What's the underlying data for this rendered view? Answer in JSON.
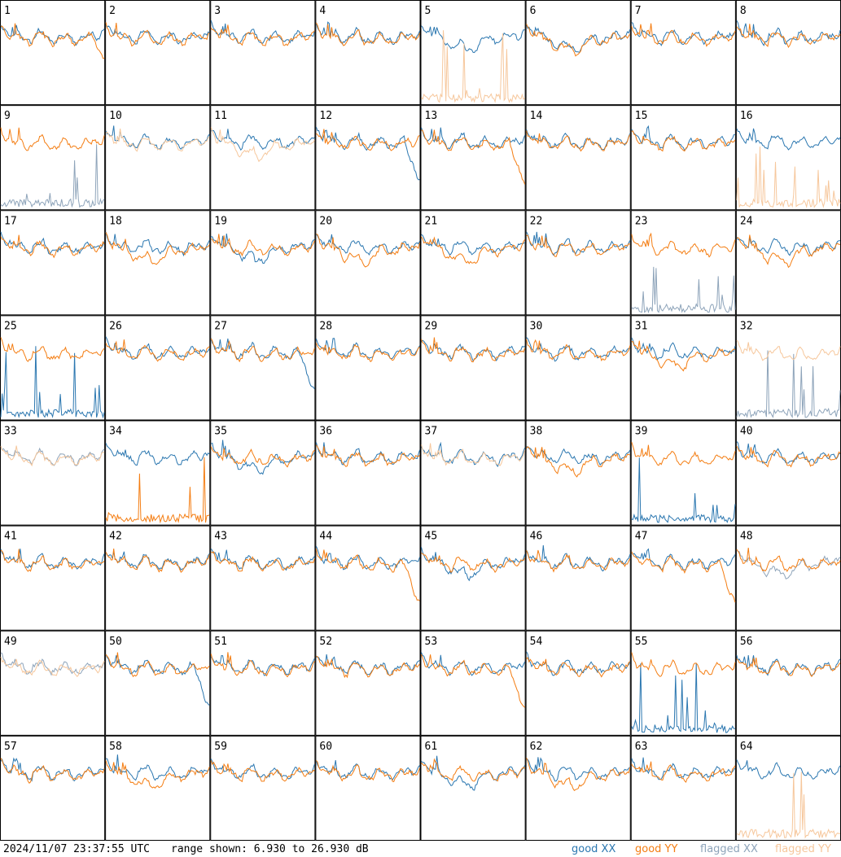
{
  "footer": {
    "timestamp": "2024/11/07 23:37:55 UTC",
    "range_text": "range shown: 6.930 to 26.930 dB"
  },
  "legend": [
    {
      "label": "good XX",
      "color": "#2b77b0"
    },
    {
      "label": "good YY",
      "color": "#f47d12"
    },
    {
      "label": "flagged XX",
      "color": "#8ea4ba"
    },
    {
      "label": "flagged YY",
      "color": "#f6c79c"
    }
  ],
  "chart_data": {
    "type": "line",
    "grid": "8x8 small multiples",
    "range_db": [
      6.93,
      26.93
    ],
    "ylim": [
      6.93,
      26.93
    ],
    "series_legend": [
      "good XX",
      "good YY",
      "flagged XX",
      "flagged YY"
    ],
    "panels": [
      {
        "id": "1",
        "xx_flag": false,
        "yy_flag": false,
        "xx_pattern": "normal",
        "yy_pattern": "droop"
      },
      {
        "id": "2",
        "xx_flag": false,
        "yy_flag": false,
        "xx_pattern": "normal",
        "yy_pattern": "normal"
      },
      {
        "id": "3",
        "xx_flag": false,
        "yy_flag": false,
        "xx_pattern": "normal",
        "yy_pattern": "normal"
      },
      {
        "id": "4",
        "xx_flag": false,
        "yy_flag": false,
        "xx_pattern": "normal",
        "yy_pattern": "normal"
      },
      {
        "id": "5",
        "xx_flag": false,
        "yy_flag": true,
        "xx_pattern": "dip",
        "yy_pattern": "spikes"
      },
      {
        "id": "6",
        "xx_flag": false,
        "yy_flag": false,
        "xx_pattern": "dip",
        "yy_pattern": "dip"
      },
      {
        "id": "7",
        "xx_flag": false,
        "yy_flag": false,
        "xx_pattern": "normal",
        "yy_pattern": "normal"
      },
      {
        "id": "8",
        "xx_flag": false,
        "yy_flag": false,
        "xx_pattern": "normal",
        "yy_pattern": "normal"
      },
      {
        "id": "9",
        "xx_flag": true,
        "yy_flag": false,
        "xx_pattern": "spikes",
        "yy_pattern": "normal"
      },
      {
        "id": "10",
        "xx_flag": false,
        "yy_flag": true,
        "xx_pattern": "normal",
        "yy_pattern": "normal"
      },
      {
        "id": "11",
        "xx_flag": false,
        "yy_flag": true,
        "xx_pattern": "normal",
        "yy_pattern": "dip"
      },
      {
        "id": "12",
        "xx_flag": false,
        "yy_flag": false,
        "xx_pattern": "drop",
        "yy_pattern": "normal"
      },
      {
        "id": "13",
        "xx_flag": false,
        "yy_flag": false,
        "xx_pattern": "normal",
        "yy_pattern": "drop"
      },
      {
        "id": "14",
        "xx_flag": false,
        "yy_flag": false,
        "xx_pattern": "normal",
        "yy_pattern": "normal"
      },
      {
        "id": "15",
        "xx_flag": false,
        "yy_flag": false,
        "xx_pattern": "normal",
        "yy_pattern": "normal"
      },
      {
        "id": "16",
        "xx_flag": false,
        "yy_flag": true,
        "xx_pattern": "normal",
        "yy_pattern": "spikes"
      },
      {
        "id": "17",
        "xx_flag": false,
        "yy_flag": false,
        "xx_pattern": "normal",
        "yy_pattern": "normal"
      },
      {
        "id": "18",
        "xx_flag": false,
        "yy_flag": false,
        "xx_pattern": "normal",
        "yy_pattern": "dip"
      },
      {
        "id": "19",
        "xx_flag": false,
        "yy_flag": false,
        "xx_pattern": "dip",
        "yy_pattern": "normal"
      },
      {
        "id": "20",
        "xx_flag": false,
        "yy_flag": false,
        "xx_pattern": "normal",
        "yy_pattern": "dip"
      },
      {
        "id": "21",
        "xx_flag": false,
        "yy_flag": false,
        "xx_pattern": "normal",
        "yy_pattern": "dip"
      },
      {
        "id": "22",
        "xx_flag": false,
        "yy_flag": false,
        "xx_pattern": "normal",
        "yy_pattern": "normal"
      },
      {
        "id": "23",
        "xx_flag": true,
        "yy_flag": false,
        "xx_pattern": "spikes",
        "yy_pattern": "normal"
      },
      {
        "id": "24",
        "xx_flag": false,
        "yy_flag": false,
        "xx_pattern": "normal",
        "yy_pattern": "dip"
      },
      {
        "id": "25",
        "xx_flag": false,
        "yy_flag": false,
        "xx_pattern": "spikes",
        "yy_pattern": "normal"
      },
      {
        "id": "26",
        "xx_flag": false,
        "yy_flag": false,
        "xx_pattern": "normal",
        "yy_pattern": "normal"
      },
      {
        "id": "27",
        "xx_flag": false,
        "yy_flag": false,
        "xx_pattern": "drop",
        "yy_pattern": "normal"
      },
      {
        "id": "28",
        "xx_flag": false,
        "yy_flag": false,
        "xx_pattern": "normal",
        "yy_pattern": "normal"
      },
      {
        "id": "29",
        "xx_flag": false,
        "yy_flag": false,
        "xx_pattern": "normal",
        "yy_pattern": "normal"
      },
      {
        "id": "30",
        "xx_flag": false,
        "yy_flag": false,
        "xx_pattern": "normal",
        "yy_pattern": "normal"
      },
      {
        "id": "31",
        "xx_flag": false,
        "yy_flag": false,
        "xx_pattern": "normal",
        "yy_pattern": "dip"
      },
      {
        "id": "32",
        "xx_flag": true,
        "yy_flag": true,
        "xx_pattern": "spikes",
        "yy_pattern": "normal"
      },
      {
        "id": "33",
        "xx_flag": true,
        "yy_flag": true,
        "xx_pattern": "normal",
        "yy_pattern": "normal"
      },
      {
        "id": "34",
        "xx_flag": false,
        "yy_flag": false,
        "xx_pattern": "normal",
        "yy_pattern": "spikes"
      },
      {
        "id": "35",
        "xx_flag": false,
        "yy_flag": false,
        "xx_pattern": "dip",
        "yy_pattern": "normal"
      },
      {
        "id": "36",
        "xx_flag": false,
        "yy_flag": false,
        "xx_pattern": "normal",
        "yy_pattern": "normal"
      },
      {
        "id": "37",
        "xx_flag": false,
        "yy_flag": true,
        "xx_pattern": "normal",
        "yy_pattern": "normal"
      },
      {
        "id": "38",
        "xx_flag": false,
        "yy_flag": false,
        "xx_pattern": "normal",
        "yy_pattern": "dip"
      },
      {
        "id": "39",
        "xx_flag": false,
        "yy_flag": false,
        "xx_pattern": "spikes",
        "yy_pattern": "normal"
      },
      {
        "id": "40",
        "xx_flag": false,
        "yy_flag": false,
        "xx_pattern": "normal",
        "yy_pattern": "normal"
      },
      {
        "id": "41",
        "xx_flag": false,
        "yy_flag": false,
        "xx_pattern": "normal",
        "yy_pattern": "normal"
      },
      {
        "id": "42",
        "xx_flag": false,
        "yy_flag": false,
        "xx_pattern": "normal",
        "yy_pattern": "normal"
      },
      {
        "id": "43",
        "xx_flag": false,
        "yy_flag": false,
        "xx_pattern": "normal",
        "yy_pattern": "normal"
      },
      {
        "id": "44",
        "xx_flag": false,
        "yy_flag": false,
        "xx_pattern": "normal",
        "yy_pattern": "drop"
      },
      {
        "id": "45",
        "xx_flag": false,
        "yy_flag": false,
        "xx_pattern": "dip",
        "yy_pattern": "normal"
      },
      {
        "id": "46",
        "xx_flag": false,
        "yy_flag": false,
        "xx_pattern": "normal",
        "yy_pattern": "normal"
      },
      {
        "id": "47",
        "xx_flag": false,
        "yy_flag": false,
        "xx_pattern": "normal",
        "yy_pattern": "drop"
      },
      {
        "id": "48",
        "xx_flag": true,
        "yy_flag": false,
        "xx_pattern": "dip",
        "yy_pattern": "normal"
      },
      {
        "id": "49",
        "xx_flag": true,
        "yy_flag": true,
        "xx_pattern": "normal",
        "yy_pattern": "normal"
      },
      {
        "id": "50",
        "xx_flag": false,
        "yy_flag": false,
        "xx_pattern": "drop",
        "yy_pattern": "normal"
      },
      {
        "id": "51",
        "xx_flag": false,
        "yy_flag": false,
        "xx_pattern": "normal",
        "yy_pattern": "normal"
      },
      {
        "id": "52",
        "xx_flag": false,
        "yy_flag": false,
        "xx_pattern": "normal",
        "yy_pattern": "normal"
      },
      {
        "id": "53",
        "xx_flag": false,
        "yy_flag": false,
        "xx_pattern": "normal",
        "yy_pattern": "drop"
      },
      {
        "id": "54",
        "xx_flag": false,
        "yy_flag": false,
        "xx_pattern": "normal",
        "yy_pattern": "normal"
      },
      {
        "id": "55",
        "xx_flag": false,
        "yy_flag": false,
        "xx_pattern": "spikes",
        "yy_pattern": "normal"
      },
      {
        "id": "56",
        "xx_flag": false,
        "yy_flag": false,
        "xx_pattern": "normal",
        "yy_pattern": "normal"
      },
      {
        "id": "57",
        "xx_flag": false,
        "yy_flag": false,
        "xx_pattern": "normal",
        "yy_pattern": "normal"
      },
      {
        "id": "58",
        "xx_flag": false,
        "yy_flag": false,
        "xx_pattern": "normal",
        "yy_pattern": "dip"
      },
      {
        "id": "59",
        "xx_flag": false,
        "yy_flag": false,
        "xx_pattern": "normal",
        "yy_pattern": "normal"
      },
      {
        "id": "60",
        "xx_flag": false,
        "yy_flag": false,
        "xx_pattern": "normal",
        "yy_pattern": "normal"
      },
      {
        "id": "61",
        "xx_flag": false,
        "yy_flag": false,
        "xx_pattern": "dip",
        "yy_pattern": "normal"
      },
      {
        "id": "62",
        "xx_flag": false,
        "yy_flag": false,
        "xx_pattern": "normal",
        "yy_pattern": "dip"
      },
      {
        "id": "63",
        "xx_flag": false,
        "yy_flag": false,
        "xx_pattern": "normal",
        "yy_pattern": "normal"
      },
      {
        "id": "64",
        "xx_flag": false,
        "yy_flag": true,
        "xx_pattern": "normal",
        "yy_pattern": "spikes"
      }
    ]
  }
}
